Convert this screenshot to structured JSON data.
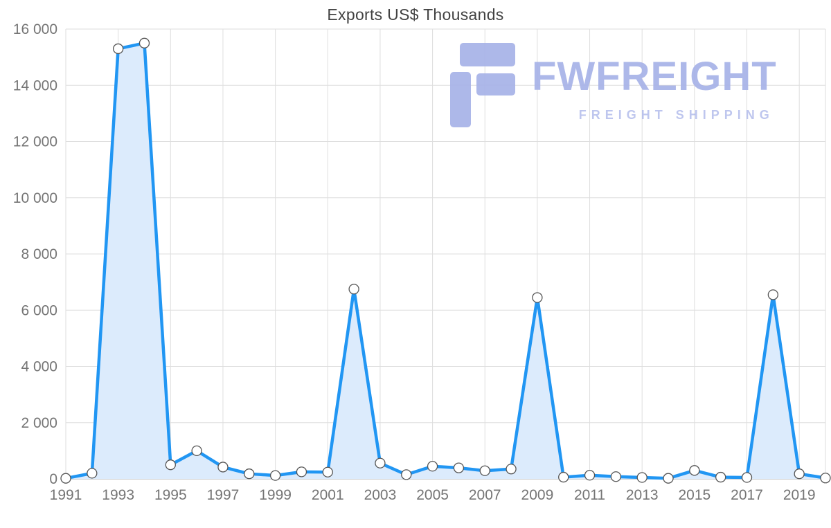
{
  "chart": {
    "title": "Exports US$ Thousands"
  },
  "watermark": {
    "brand": "FWFREIGHT",
    "tagline": "FREIGHT SHIPPING",
    "color": "#a7b2e8"
  },
  "chart_data": {
    "type": "area",
    "title": "Exports US$ Thousands",
    "xlabel": "",
    "ylabel": "",
    "x": [
      1991,
      1992,
      1993,
      1994,
      1995,
      1996,
      1997,
      1998,
      1999,
      2000,
      2001,
      2002,
      2003,
      2004,
      2005,
      2006,
      2007,
      2008,
      2009,
      2010,
      2011,
      2012,
      2013,
      2014,
      2015,
      2016,
      2017,
      2018,
      2019,
      2020
    ],
    "values": [
      20,
      200,
      15300,
      15500,
      500,
      1000,
      420,
      180,
      120,
      250,
      240,
      6750,
      560,
      150,
      450,
      390,
      290,
      350,
      6450,
      60,
      130,
      80,
      50,
      20,
      300,
      60,
      50,
      6550,
      180,
      30
    ],
    "ylim": [
      0,
      16000
    ],
    "y_ticks": [
      0,
      2000,
      4000,
      6000,
      8000,
      10000,
      12000,
      14000,
      16000
    ],
    "y_tick_labels": [
      "0",
      "2 000",
      "4 000",
      "6 000",
      "8 000",
      "10 000",
      "12 000",
      "14 000",
      "16 000"
    ],
    "x_tick_years": [
      1991,
      1993,
      1995,
      1997,
      1999,
      2001,
      2003,
      2005,
      2007,
      2009,
      2011,
      2013,
      2015,
      2017,
      2019
    ],
    "x_tick_labels": [
      "1991",
      "1993",
      "1995",
      "1997",
      "1999",
      "2001",
      "2003",
      "2005",
      "2007",
      "2009",
      "2011",
      "2013",
      "2015",
      "2017",
      "2019"
    ],
    "grid": true,
    "legend": false,
    "colors": {
      "line": "#2196f3",
      "area": "#dcebfc",
      "marker_fill": "#ffffff",
      "marker_stroke": "#555555",
      "grid": "#dedede",
      "axis_line": "#bdbdbd",
      "axis_text": "#757575",
      "title_text": "#424242"
    }
  }
}
